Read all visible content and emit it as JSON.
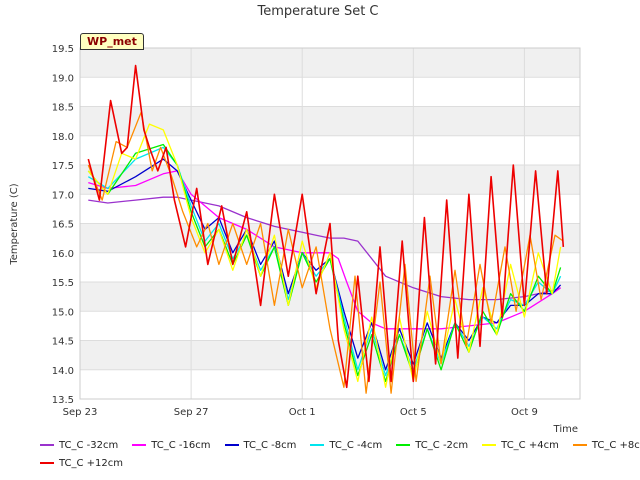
{
  "station": "WP_met",
  "chart_data": {
    "type": "line",
    "title": "Temperature Set C",
    "xlabel": "Time",
    "ylabel": "Temperature (C)",
    "xlim": [
      0,
      18
    ],
    "ylim": [
      13.5,
      19.5
    ],
    "x_ticks": [
      {
        "x": 0,
        "label": "Sep 23"
      },
      {
        "x": 4,
        "label": "Sep 27"
      },
      {
        "x": 8,
        "label": "Oct 1"
      },
      {
        "x": 12,
        "label": "Oct 5"
      },
      {
        "x": 16,
        "label": "Oct 9"
      }
    ],
    "y_ticks": [
      13.5,
      14.0,
      14.5,
      15.0,
      15.5,
      16.0,
      16.5,
      17.0,
      17.5,
      18.0,
      18.5,
      19.0,
      19.5
    ],
    "grid": true,
    "legend_position": "bottom",
    "series": [
      {
        "name": "TC_C -32cm",
        "color": "#9a32cd",
        "x": [
          0.3,
          1,
          2,
          3,
          3.5,
          4,
          5,
          6,
          7,
          8,
          8.5,
          9,
          9.5,
          10,
          11,
          12,
          13,
          14,
          15,
          16,
          17,
          17.3
        ],
        "y": [
          16.9,
          16.85,
          16.9,
          16.95,
          16.95,
          16.9,
          16.8,
          16.6,
          16.45,
          16.35,
          16.3,
          16.25,
          16.25,
          16.2,
          15.6,
          15.4,
          15.25,
          15.2,
          15.2,
          15.25,
          15.35,
          15.4
        ]
      },
      {
        "name": "TC_C -16cm",
        "color": "#ff00ff",
        "x": [
          0.3,
          1,
          2,
          3,
          3.5,
          4,
          5,
          6,
          7,
          8,
          9,
          9.3,
          9.6,
          10,
          10.5,
          11,
          12,
          13,
          14,
          15,
          16,
          17,
          17.3
        ],
        "y": [
          17.2,
          17.1,
          17.15,
          17.35,
          17.4,
          17.0,
          16.6,
          16.4,
          16.1,
          16.0,
          16.0,
          15.9,
          15.5,
          15.0,
          14.8,
          14.7,
          14.7,
          14.7,
          14.75,
          14.8,
          15.0,
          15.3,
          15.4
        ]
      },
      {
        "name": "TC_C -8cm",
        "color": "#0000cd",
        "x": [
          0.3,
          1,
          2,
          3,
          3.5,
          4,
          4.5,
          5,
          5.5,
          6,
          6.5,
          7,
          7.5,
          8,
          8.5,
          9,
          9.5,
          10,
          10.5,
          11,
          11.5,
          12,
          12.5,
          13,
          13.5,
          14,
          14.5,
          15,
          15.5,
          16,
          16.5,
          17,
          17.3
        ],
        "y": [
          17.1,
          17.05,
          17.3,
          17.6,
          17.4,
          16.9,
          16.4,
          16.6,
          16.0,
          16.4,
          15.8,
          16.2,
          15.3,
          16.0,
          15.7,
          15.9,
          15.0,
          14.2,
          14.8,
          14.0,
          14.7,
          14.1,
          14.8,
          14.2,
          14.8,
          14.5,
          14.9,
          14.8,
          15.1,
          15.1,
          15.3,
          15.3,
          15.45
        ]
      },
      {
        "name": "TC_C -4cm",
        "color": "#00e5ee",
        "x": [
          0.3,
          1,
          2,
          3,
          3.5,
          4,
          4.5,
          5,
          5.5,
          6,
          6.5,
          7,
          7.5,
          8,
          8.5,
          9,
          9.5,
          10,
          10.5,
          11,
          11.5,
          12,
          12.5,
          13,
          13.5,
          14,
          14.5,
          15,
          15.5,
          16,
          16.5,
          17,
          17.3
        ],
        "y": [
          17.3,
          17.1,
          17.6,
          17.8,
          17.5,
          16.8,
          16.2,
          16.5,
          15.9,
          16.3,
          15.7,
          16.1,
          15.2,
          16.0,
          15.6,
          15.9,
          14.9,
          14.0,
          14.7,
          13.9,
          14.6,
          14.0,
          14.7,
          14.1,
          14.8,
          14.4,
          14.9,
          14.7,
          15.2,
          15.1,
          15.5,
          15.3,
          15.6
        ]
      },
      {
        "name": "TC_C -2cm",
        "color": "#00ee00",
        "x": [
          0.3,
          1,
          2,
          3,
          3.5,
          4,
          4.5,
          5,
          5.5,
          6,
          6.5,
          7,
          7.5,
          8,
          8.5,
          9,
          9.5,
          10,
          10.5,
          11,
          11.5,
          12,
          12.5,
          13,
          13.5,
          14,
          14.5,
          15,
          15.5,
          16,
          16.5,
          17,
          17.3
        ],
        "y": [
          17.4,
          17.0,
          17.7,
          17.85,
          17.5,
          16.7,
          16.1,
          16.4,
          15.8,
          16.3,
          15.6,
          16.1,
          15.1,
          16.0,
          15.5,
          15.9,
          14.8,
          13.9,
          14.6,
          13.8,
          14.6,
          13.9,
          14.7,
          14.0,
          14.8,
          14.3,
          15.0,
          14.6,
          15.3,
          15.0,
          15.6,
          15.3,
          15.75
        ]
      },
      {
        "name": "TC_C +4cm",
        "color": "#ffff00",
        "x": [
          0.3,
          1,
          1.5,
          2,
          2.5,
          3,
          3.5,
          4,
          4.5,
          5,
          5.5,
          6,
          6.5,
          7,
          7.5,
          8,
          8.5,
          9,
          9.5,
          10,
          10.5,
          11,
          11.5,
          12,
          12.5,
          13,
          13.5,
          14,
          14.5,
          15,
          15.5,
          16,
          16.5,
          17,
          17.3
        ],
        "y": [
          17.4,
          17.0,
          17.7,
          17.6,
          18.2,
          18.1,
          17.5,
          16.6,
          16.0,
          16.4,
          15.7,
          16.4,
          15.6,
          16.3,
          15.1,
          16.2,
          15.4,
          16.0,
          14.7,
          13.8,
          14.9,
          13.7,
          14.9,
          13.8,
          15.0,
          14.1,
          15.2,
          14.3,
          15.4,
          14.6,
          15.8,
          14.9,
          16.0,
          15.3,
          16.1
        ]
      },
      {
        "name": "TC_C +8cm",
        "color": "#ff8c00",
        "x": [
          0.3,
          0.8,
          1.3,
          1.7,
          2.2,
          2.6,
          2.9,
          3.3,
          3.7,
          4.2,
          4.6,
          5.0,
          5.5,
          6.0,
          6.5,
          7.0,
          7.5,
          8.0,
          8.5,
          9.0,
          9.5,
          9.9,
          10.3,
          10.8,
          11.2,
          11.7,
          12.1,
          12.6,
          13.0,
          13.5,
          13.9,
          14.4,
          14.8,
          15.3,
          15.7,
          16.2,
          16.6,
          17.1,
          17.4
        ],
        "y": [
          17.5,
          16.9,
          17.9,
          17.8,
          18.4,
          17.4,
          17.8,
          17.3,
          16.7,
          16.1,
          16.5,
          15.8,
          16.5,
          15.8,
          16.5,
          15.1,
          16.4,
          15.4,
          16.1,
          14.7,
          13.7,
          15.6,
          13.6,
          15.5,
          13.6,
          15.8,
          13.8,
          15.6,
          14.1,
          15.7,
          14.4,
          15.8,
          14.8,
          16.1,
          15.0,
          16.3,
          15.2,
          16.3,
          16.2
        ]
      },
      {
        "name": "TC_C +12cm",
        "color": "#ee0000",
        "x": [
          0.3,
          0.7,
          1.1,
          1.5,
          1.7,
          2.0,
          2.3,
          2.5,
          2.8,
          3.1,
          3.4,
          3.8,
          4.2,
          4.6,
          5.1,
          5.5,
          6.0,
          6.5,
          7.0,
          7.5,
          8.0,
          8.5,
          9.0,
          9.3,
          9.6,
          10.0,
          10.4,
          10.8,
          11.2,
          11.6,
          12.0,
          12.4,
          12.8,
          13.2,
          13.6,
          14.0,
          14.4,
          14.8,
          15.2,
          15.6,
          16.0,
          16.4,
          16.8,
          17.2,
          17.4
        ],
        "y": [
          17.6,
          16.9,
          18.6,
          17.7,
          17.8,
          19.2,
          18.1,
          17.8,
          17.4,
          17.8,
          16.9,
          16.1,
          17.1,
          15.8,
          16.8,
          15.8,
          16.7,
          15.1,
          17.0,
          15.6,
          17.0,
          15.3,
          16.5,
          14.5,
          13.7,
          15.6,
          13.8,
          16.1,
          13.8,
          16.2,
          13.8,
          16.6,
          14.1,
          16.9,
          14.2,
          17.0,
          14.4,
          17.3,
          14.9,
          17.5,
          15.1,
          17.4,
          15.3,
          17.4,
          16.1
        ]
      }
    ]
  }
}
